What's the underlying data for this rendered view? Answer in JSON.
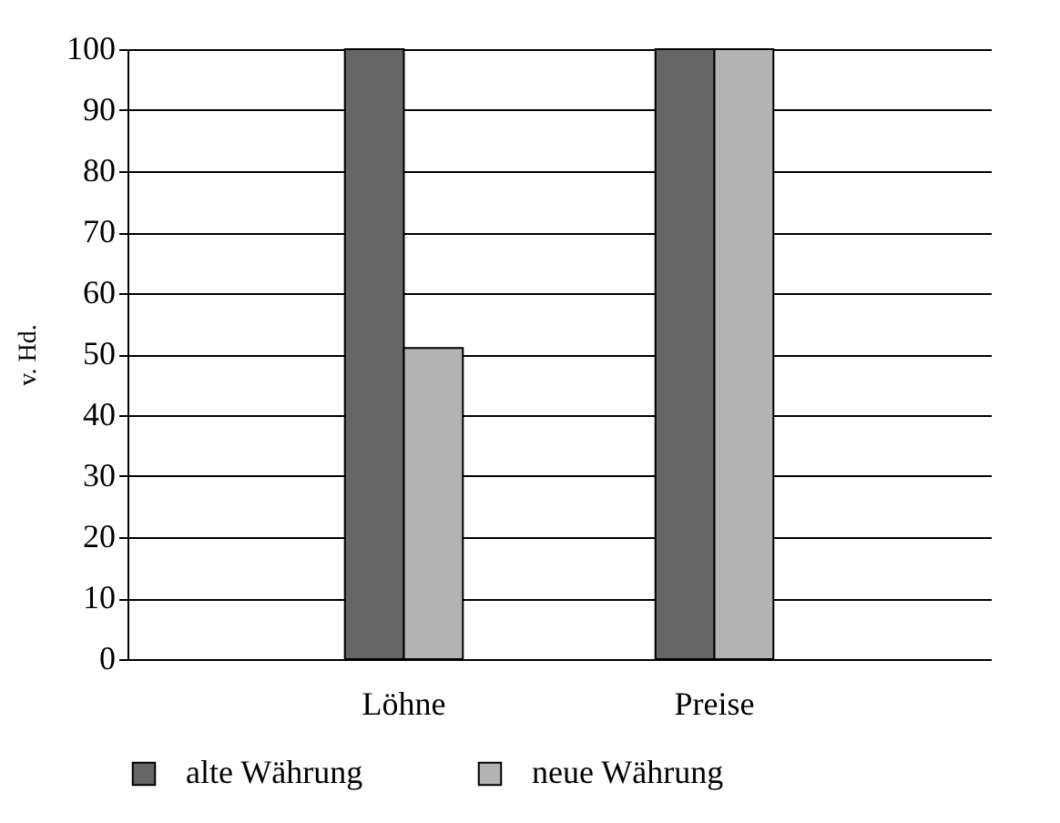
{
  "chart_data": {
    "type": "bar",
    "ylabel": "v. Hd.",
    "categories": [
      "Löhne",
      "Preise"
    ],
    "series": [
      {
        "name": "alte Währung",
        "color": "#666666",
        "values": [
          100,
          100
        ]
      },
      {
        "name": "neue Währung",
        "color": "#b3b3b3",
        "values": [
          51,
          100
        ]
      }
    ],
    "ylim": [
      0,
      100
    ],
    "yticks": [
      0,
      10,
      20,
      30,
      40,
      50,
      60,
      70,
      80,
      90,
      100
    ],
    "grid": "y",
    "legend": "bottom"
  }
}
